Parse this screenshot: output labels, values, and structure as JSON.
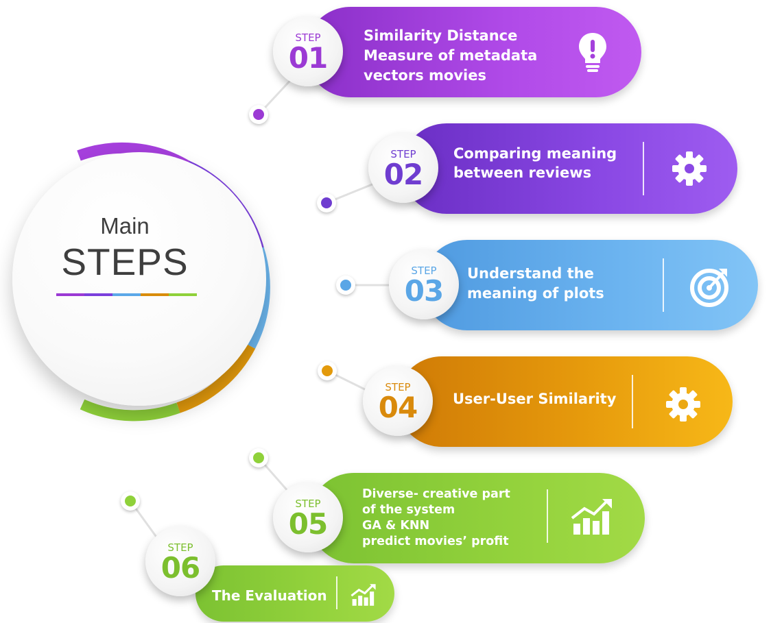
{
  "main": {
    "title_small": "Main",
    "title_big": "STEPS",
    "bar_colors": [
      "#9b3ad4",
      "#7b3fdc",
      "#5ba8e8",
      "#d98c0a",
      "#8fd13a"
    ]
  },
  "colors": {
    "step1": "#9b3ad4",
    "step2": "#7a3fd8",
    "step3": "#5aa6e6",
    "step4": "#d98a0c",
    "step5": "#86c83a",
    "step6": "#86c83a"
  },
  "steps": [
    {
      "label": "STEP",
      "number": "01",
      "lines": [
        "Similarity Distance",
        "Measure of metadata",
        "vectors movies"
      ],
      "icon": "lightbulb-icon"
    },
    {
      "label": "STEP",
      "number": "02",
      "lines": [
        "Comparing meaning",
        " between reviews"
      ],
      "icon": "gear-icon"
    },
    {
      "label": "STEP",
      "number": "03",
      "lines": [
        "Understand the",
        " meaning of plots"
      ],
      "icon": "target-icon"
    },
    {
      "label": "STEP",
      "number": "04",
      "lines": [
        "User-User Similarity"
      ],
      "icon": "gear-icon"
    },
    {
      "label": "STEP",
      "number": "05",
      "lines": [
        "Diverse- creative part",
        "of the system",
        "GA & KNN",
        "predict movies’ profit"
      ],
      "icon": "growth-chart-icon"
    },
    {
      "label": "STEP",
      "number": "06",
      "lines": [
        "The Evaluation"
      ],
      "icon": "growth-chart-icon"
    }
  ]
}
